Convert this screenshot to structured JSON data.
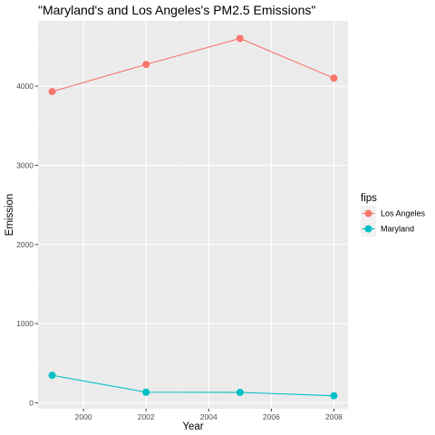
{
  "chart_data": {
    "type": "line",
    "title": "\"Maryland's and Los Angeles's PM2.5 Emissions\"",
    "xlabel": "Year",
    "ylabel": "Emission",
    "xlim": [
      1998.55,
      2008.45
    ],
    "ylim": [
      -75,
      4825
    ],
    "x_ticks": [
      2000,
      2002,
      2004,
      2006,
      2008
    ],
    "y_ticks": [
      0,
      1000,
      2000,
      3000,
      4000
    ],
    "grid": true,
    "legend": {
      "title": "fips",
      "position": "right"
    },
    "series": [
      {
        "name": "Los Angeles",
        "color": "#F8766D",
        "x": [
          1999,
          2002,
          2005,
          2008
        ],
        "y": [
          3931,
          4274,
          4602,
          4101
        ]
      },
      {
        "name": "Maryland",
        "color": "#00BFC4",
        "x": [
          1999,
          2002,
          2005,
          2008
        ],
        "y": [
          347,
          134,
          131,
          89
        ]
      }
    ]
  }
}
